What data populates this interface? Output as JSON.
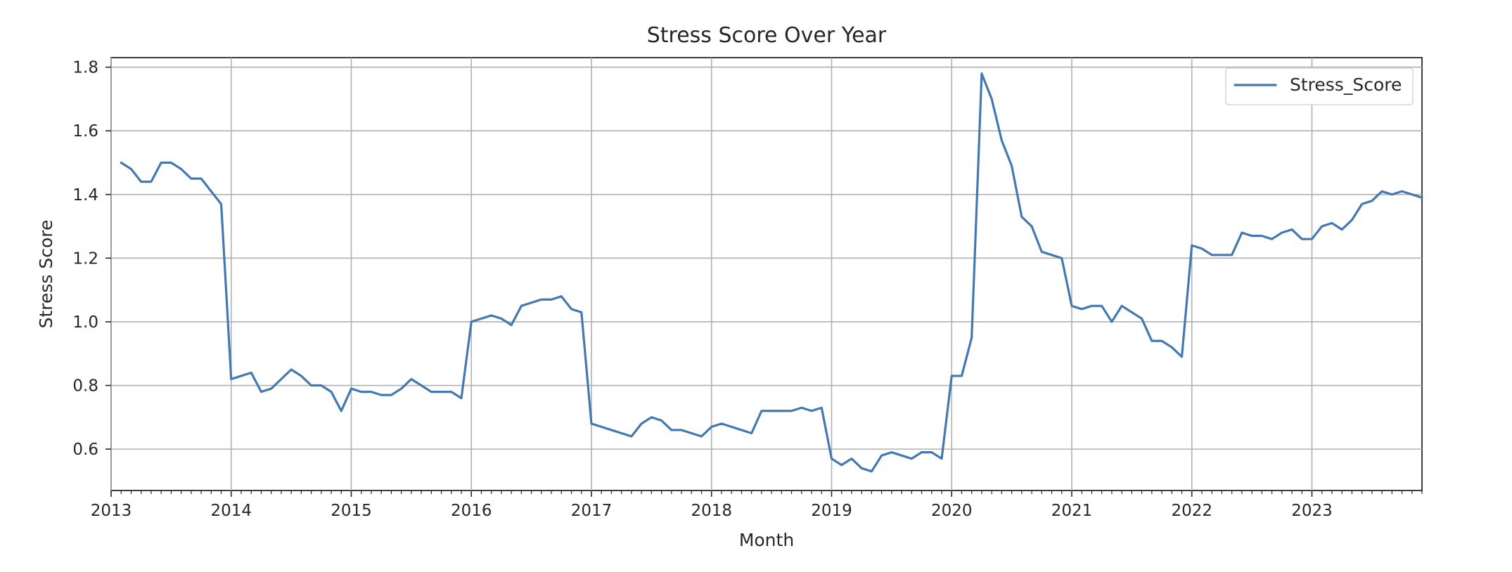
{
  "chart_data": {
    "type": "line",
    "title": "Stress Score Over Year",
    "xlabel": "Month",
    "ylabel": "Stress Score",
    "grid": true,
    "legend": {
      "placement": "top-right",
      "entries": [
        "Stress_Score"
      ]
    },
    "xlim": [
      "2013-01",
      "2023-12"
    ],
    "ylim": [
      0.47,
      1.83
    ],
    "x_ticks": [
      "2013",
      "2014",
      "2015",
      "2016",
      "2017",
      "2018",
      "2019",
      "2020",
      "2021",
      "2022",
      "2023"
    ],
    "y_ticks": [
      "0.6",
      "0.8",
      "1.0",
      "1.2",
      "1.4",
      "1.6",
      "1.8"
    ],
    "colors": {
      "series": "#4379b0",
      "grid": "#b0b0b0",
      "axes": "#262626"
    },
    "series": [
      {
        "name": "Stress_Score",
        "x": [
          "2013-02",
          "2013-03",
          "2013-04",
          "2013-05",
          "2013-06",
          "2013-07",
          "2013-08",
          "2013-09",
          "2013-10",
          "2013-11",
          "2013-12",
          "2014-01",
          "2014-02",
          "2014-03",
          "2014-04",
          "2014-05",
          "2014-06",
          "2014-07",
          "2014-08",
          "2014-09",
          "2014-10",
          "2014-11",
          "2014-12",
          "2015-01",
          "2015-02",
          "2015-03",
          "2015-04",
          "2015-05",
          "2015-06",
          "2015-07",
          "2015-08",
          "2015-09",
          "2015-10",
          "2015-11",
          "2015-12",
          "2016-01",
          "2016-02",
          "2016-03",
          "2016-04",
          "2016-05",
          "2016-06",
          "2016-07",
          "2016-08",
          "2016-09",
          "2016-10",
          "2016-11",
          "2016-12",
          "2017-01",
          "2017-02",
          "2017-03",
          "2017-04",
          "2017-05",
          "2017-06",
          "2017-07",
          "2017-08",
          "2017-09",
          "2017-10",
          "2017-11",
          "2017-12",
          "2018-01",
          "2018-02",
          "2018-03",
          "2018-04",
          "2018-05",
          "2018-06",
          "2018-07",
          "2018-08",
          "2018-09",
          "2018-10",
          "2018-11",
          "2018-12",
          "2019-01",
          "2019-02",
          "2019-03",
          "2019-04",
          "2019-05",
          "2019-06",
          "2019-07",
          "2019-08",
          "2019-09",
          "2019-10",
          "2019-11",
          "2019-12",
          "2020-01",
          "2020-02",
          "2020-03",
          "2020-04",
          "2020-05",
          "2020-06",
          "2020-07",
          "2020-08",
          "2020-09",
          "2020-10",
          "2020-11",
          "2020-12",
          "2021-01",
          "2021-02",
          "2021-03",
          "2021-04",
          "2021-05",
          "2021-06",
          "2021-07",
          "2021-08",
          "2021-09",
          "2021-10",
          "2021-11",
          "2021-12",
          "2022-01",
          "2022-02",
          "2022-03",
          "2022-04",
          "2022-05",
          "2022-06",
          "2022-07",
          "2022-08",
          "2022-09",
          "2022-10",
          "2022-11",
          "2022-12",
          "2023-01",
          "2023-02",
          "2023-03",
          "2023-04",
          "2023-05",
          "2023-06",
          "2023-07",
          "2023-08",
          "2023-09",
          "2023-10",
          "2023-11",
          "2023-12"
        ],
        "values": [
          1.5,
          1.48,
          1.44,
          1.44,
          1.5,
          1.5,
          1.48,
          1.45,
          1.45,
          1.41,
          1.37,
          0.82,
          0.83,
          0.84,
          0.78,
          0.79,
          0.82,
          0.85,
          0.83,
          0.8,
          0.8,
          0.78,
          0.72,
          0.79,
          0.78,
          0.78,
          0.77,
          0.77,
          0.79,
          0.82,
          0.8,
          0.78,
          0.78,
          0.78,
          0.76,
          1.0,
          1.01,
          1.02,
          1.01,
          0.99,
          1.05,
          1.06,
          1.07,
          1.07,
          1.08,
          1.04,
          1.03,
          0.68,
          0.67,
          0.66,
          0.65,
          0.64,
          0.68,
          0.7,
          0.69,
          0.66,
          0.66,
          0.65,
          0.64,
          0.67,
          0.68,
          0.67,
          0.66,
          0.65,
          0.72,
          0.72,
          0.72,
          0.72,
          0.73,
          0.72,
          0.73,
          0.57,
          0.55,
          0.57,
          0.54,
          0.53,
          0.58,
          0.59,
          0.58,
          0.57,
          0.59,
          0.59,
          0.57,
          0.83,
          0.83,
          0.95,
          1.78,
          1.7,
          1.57,
          1.49,
          1.33,
          1.3,
          1.22,
          1.21,
          1.2,
          1.05,
          1.04,
          1.05,
          1.05,
          1.0,
          1.05,
          1.03,
          1.01,
          0.94,
          0.94,
          0.92,
          0.89,
          1.24,
          1.23,
          1.21,
          1.21,
          1.21,
          1.28,
          1.27,
          1.27,
          1.26,
          1.28,
          1.29,
          1.26,
          1.26,
          1.3,
          1.31,
          1.29,
          1.32,
          1.37,
          1.38,
          1.41,
          1.4,
          1.41,
          1.4,
          1.39
        ]
      }
    ]
  }
}
